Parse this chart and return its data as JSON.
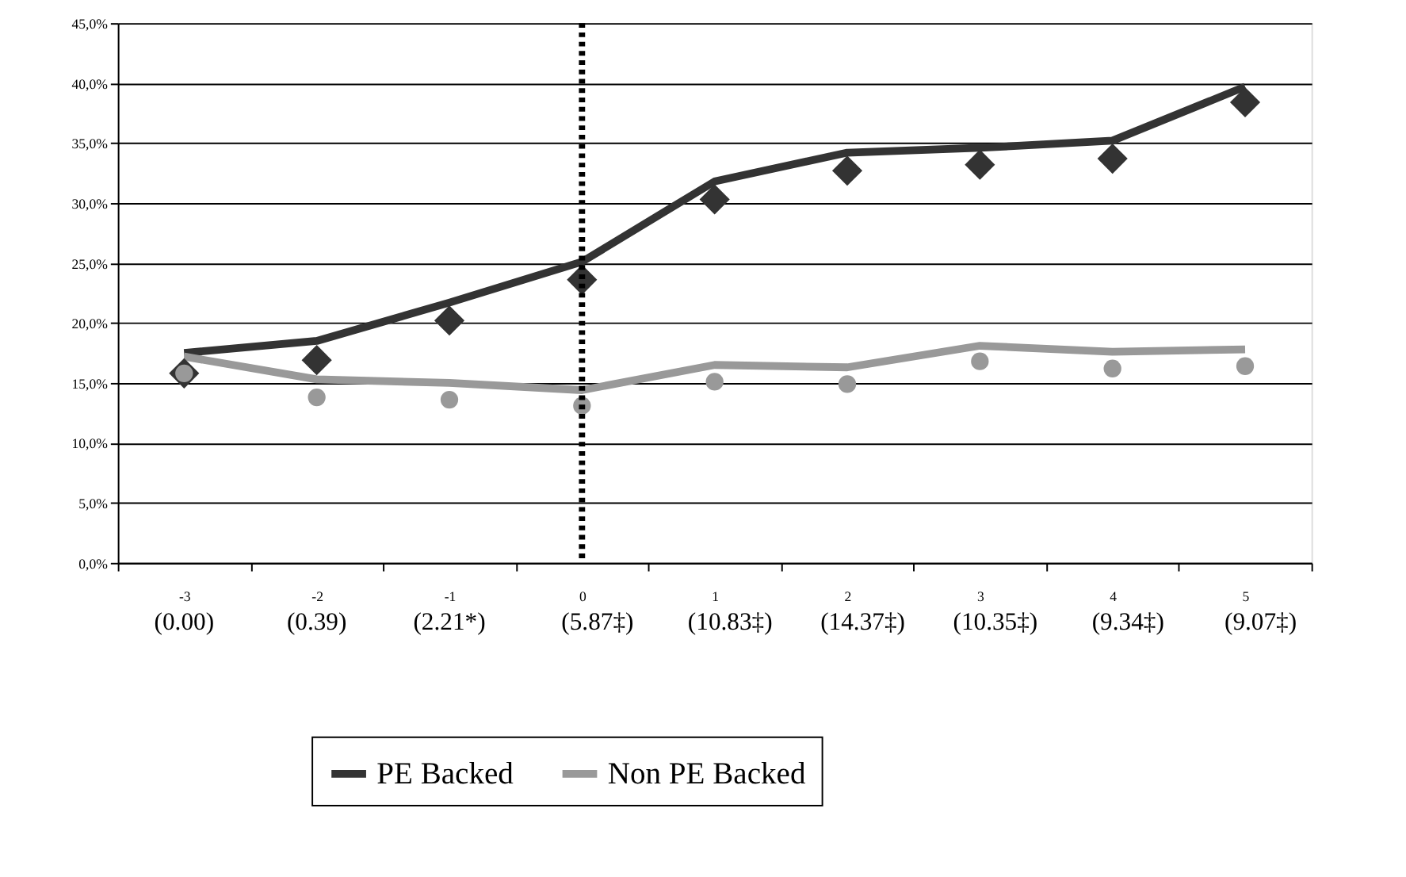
{
  "chart_data": {
    "type": "line",
    "categories": [
      "-3",
      "-2",
      "-1",
      "0",
      "1",
      "2",
      "3",
      "4",
      "5"
    ],
    "ylim": [
      0,
      45
    ],
    "yticks": [
      {
        "value": 0,
        "label": "0,0%"
      },
      {
        "value": 5,
        "label": "5,0%"
      },
      {
        "value": 10,
        "label": "10,0%"
      },
      {
        "value": 15,
        "label": "15,0%"
      },
      {
        "value": 20,
        "label": "20,0%"
      },
      {
        "value": 25,
        "label": "25,0%"
      },
      {
        "value": 30,
        "label": "30,0%"
      },
      {
        "value": 35,
        "label": "35,0%"
      },
      {
        "value": 40,
        "label": "40,0%"
      },
      {
        "value": 45,
        "label": "45,0%"
      }
    ],
    "grid": "y",
    "legend": "bottom",
    "series": [
      {
        "name": "PE Backed",
        "type": "line",
        "color": "#333333",
        "marker": "none",
        "values": [
          17.5,
          18.5,
          21.7,
          25.1,
          31.8,
          34.2,
          34.6,
          35.2,
          39.7
        ]
      },
      {
        "name": "Non PE Backed",
        "type": "line",
        "color": "#999999",
        "marker": "none",
        "values": [
          17.2,
          15.3,
          15.0,
          14.4,
          16.5,
          16.3,
          18.1,
          17.6,
          17.8
        ]
      },
      {
        "type": "scatter",
        "color": "#333333",
        "marker": "diamond",
        "values": [
          15.8,
          16.9,
          20.2,
          23.6,
          30.3,
          32.7,
          33.2,
          33.7,
          38.4
        ]
      },
      {
        "type": "scatter",
        "color": "#999999",
        "marker": "circle",
        "values": [
          15.8,
          13.8,
          13.6,
          13.1,
          15.1,
          14.9,
          16.8,
          16.2,
          16.4
        ]
      }
    ],
    "ref_lines": [
      {
        "axis": "x",
        "value": "0",
        "color": "#000000",
        "line_style": "dotted"
      }
    ],
    "annotations": [
      "(0.00)",
      "(0.39)",
      "(2.21*)",
      "(5.87‡)",
      "(10.83‡)",
      "(14.37‡)",
      "(10.35‡)",
      "(9.34‡)",
      "(9.07‡)"
    ]
  }
}
